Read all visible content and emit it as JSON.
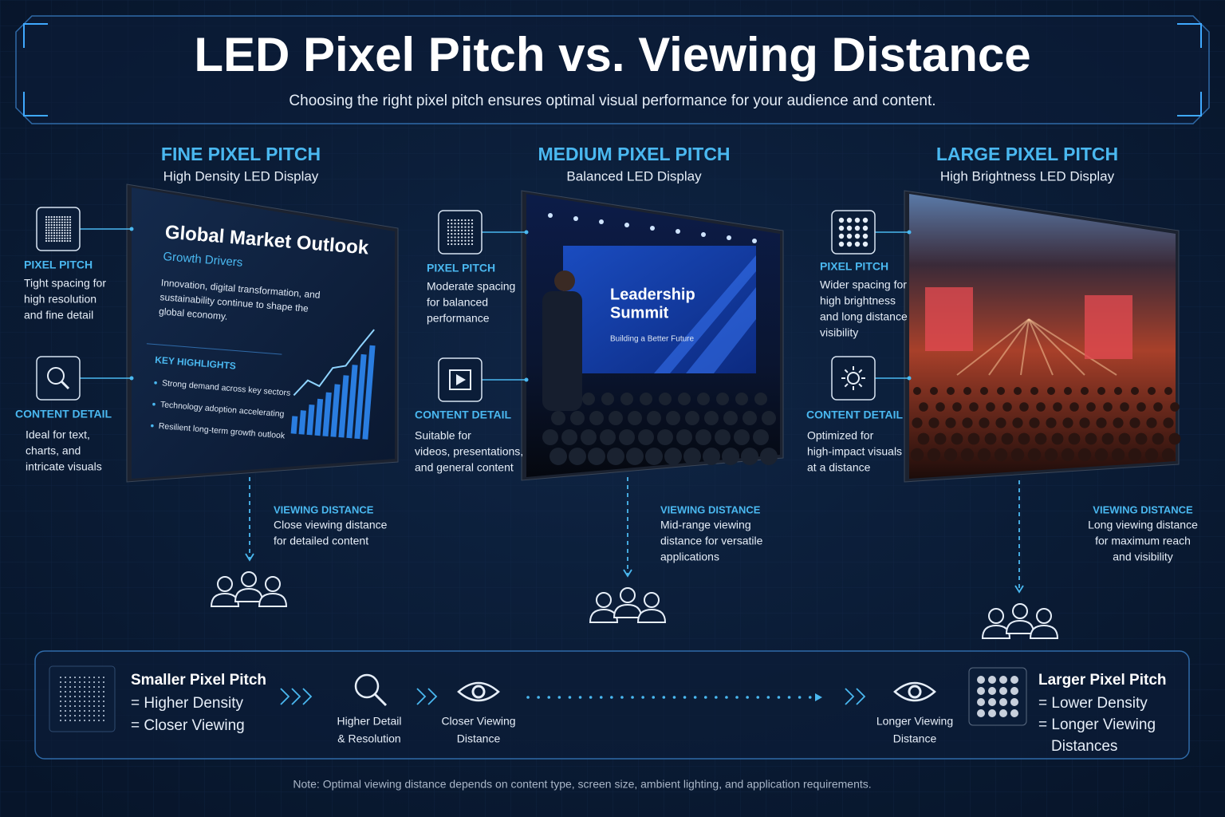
{
  "header": {
    "title": "LED Pixel Pitch vs. Viewing Distance",
    "subtitle": "Choosing the right pixel pitch ensures optimal visual performance for your audience and content."
  },
  "columns": [
    {
      "title": "FINE PIXEL PITCH",
      "subtitle": "High Density LED Display",
      "pixel_pitch": {
        "label": "PIXEL PITCH",
        "lines": [
          "Tight spacing for",
          "high resolution",
          "and fine detail"
        ]
      },
      "content_detail": {
        "label": "CONTENT DETAIL",
        "lines": [
          "Ideal for text,",
          "charts, and",
          "intricate visuals"
        ]
      },
      "viewing_distance": {
        "label": "VIEWING DISTANCE",
        "lines": [
          "Close viewing distance",
          "for detailed content"
        ]
      },
      "screen": {
        "title": "Global Market Outlook",
        "subtitle": "Growth Drivers",
        "body": [
          "Innovation, digital transformation, and",
          "sustainability continue to shape the",
          "global economy."
        ],
        "highlights_title": "KEY HIGHLIGHTS",
        "highlights": [
          "Strong demand across key sectors",
          "Technology adoption accelerating",
          "Resilient long-term growth outlook"
        ]
      }
    },
    {
      "title": "MEDIUM PIXEL PITCH",
      "subtitle": "Balanced LED Display",
      "pixel_pitch": {
        "label": "PIXEL PITCH",
        "lines": [
          "Moderate spacing",
          "for balanced",
          "performance"
        ]
      },
      "content_detail": {
        "label": "CONTENT DETAIL",
        "lines": [
          "Suitable for",
          "videos, presentations,",
          "and general content"
        ]
      },
      "viewing_distance": {
        "label": "VIEWING DISTANCE",
        "lines": [
          "Mid-range viewing",
          "distance for versatile",
          "applications"
        ]
      },
      "screen": {
        "title": [
          "Leadership",
          "Summit"
        ],
        "subtitle": "Building a Better Future"
      }
    },
    {
      "title": "LARGE PIXEL PITCH",
      "subtitle": "High Brightness LED Display",
      "pixel_pitch": {
        "label": "PIXEL PITCH",
        "lines": [
          "Wider spacing for",
          "high brightness",
          "and long distance",
          "visibility"
        ]
      },
      "content_detail": {
        "label": "CONTENT DETAIL",
        "lines": [
          "Optimized for",
          "high-impact visuals",
          "at a distance"
        ]
      },
      "viewing_distance": {
        "label": "VIEWING DISTANCE",
        "lines": [
          "Long viewing distance",
          "for maximum reach",
          "and visibility"
        ]
      }
    }
  ],
  "legend": {
    "left": {
      "title": "Smaller Pixel Pitch",
      "lines": [
        "= Higher Density",
        "= Closer Viewing"
      ]
    },
    "steps": [
      {
        "lines": [
          "Higher Detail",
          "& Resolution"
        ]
      },
      {
        "lines": [
          "Closer Viewing",
          "Distance"
        ]
      },
      {
        "lines": [
          "Longer Viewing",
          "Distance"
        ]
      }
    ],
    "right": {
      "title": "Larger Pixel Pitch",
      "lines": [
        "= Lower Density",
        "= Longer Viewing",
        "Distances"
      ]
    }
  },
  "note": "Note: Optimal viewing distance depends on content type, screen size, ambient lighting, and application requirements."
}
